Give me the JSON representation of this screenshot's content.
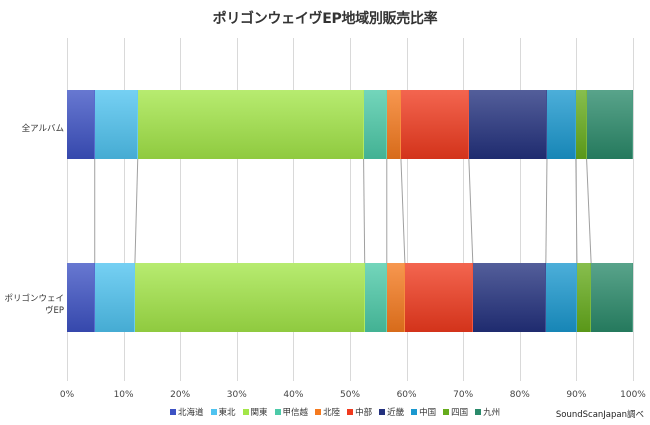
{
  "chart_data": {
    "type": "bar",
    "orientation": "horizontal",
    "stacked": "percent",
    "title": "ポリゴンウェイヴEP地域別販売比率",
    "categories": [
      "全アルバム",
      "ポリゴンウェイヴEP"
    ],
    "series": [
      {
        "name": "北海道",
        "color": "#3d52c4",
        "values": [
          4.9,
          4.9
        ]
      },
      {
        "name": "東北",
        "color": "#4fc3f0",
        "values": [
          7.6,
          7.1
        ]
      },
      {
        "name": "関東",
        "color": "#a3e648",
        "values": [
          39.9,
          40.6
        ]
      },
      {
        "name": "甲信越",
        "color": "#4ccaa8",
        "values": [
          4.1,
          3.9
        ]
      },
      {
        "name": "北陸",
        "color": "#f57a1e",
        "values": [
          2.5,
          3.2
        ]
      },
      {
        "name": "中部",
        "color": "#f03a1e",
        "values": [
          12.0,
          12.0
        ]
      },
      {
        "name": "近畿",
        "color": "#23317e",
        "values": [
          13.8,
          12.9
        ]
      },
      {
        "name": "中国",
        "color": "#1a98cf",
        "values": [
          5.1,
          5.5
        ]
      },
      {
        "name": "四国",
        "color": "#66ac1c",
        "values": [
          1.9,
          2.5
        ]
      },
      {
        "name": "九州",
        "color": "#2a8a6a",
        "values": [
          8.2,
          7.4
        ]
      }
    ],
    "xlabel": "",
    "ylabel": "",
    "xlim": [
      0,
      100
    ],
    "xticks": [
      "0%",
      "10%",
      "20%",
      "30%",
      "40%",
      "50%",
      "60%",
      "70%",
      "80%",
      "90%",
      "100%"
    ],
    "grid": true,
    "legend_position": "bottom",
    "series_lines": true
  },
  "source_note": "SoundScanJapan調べ"
}
